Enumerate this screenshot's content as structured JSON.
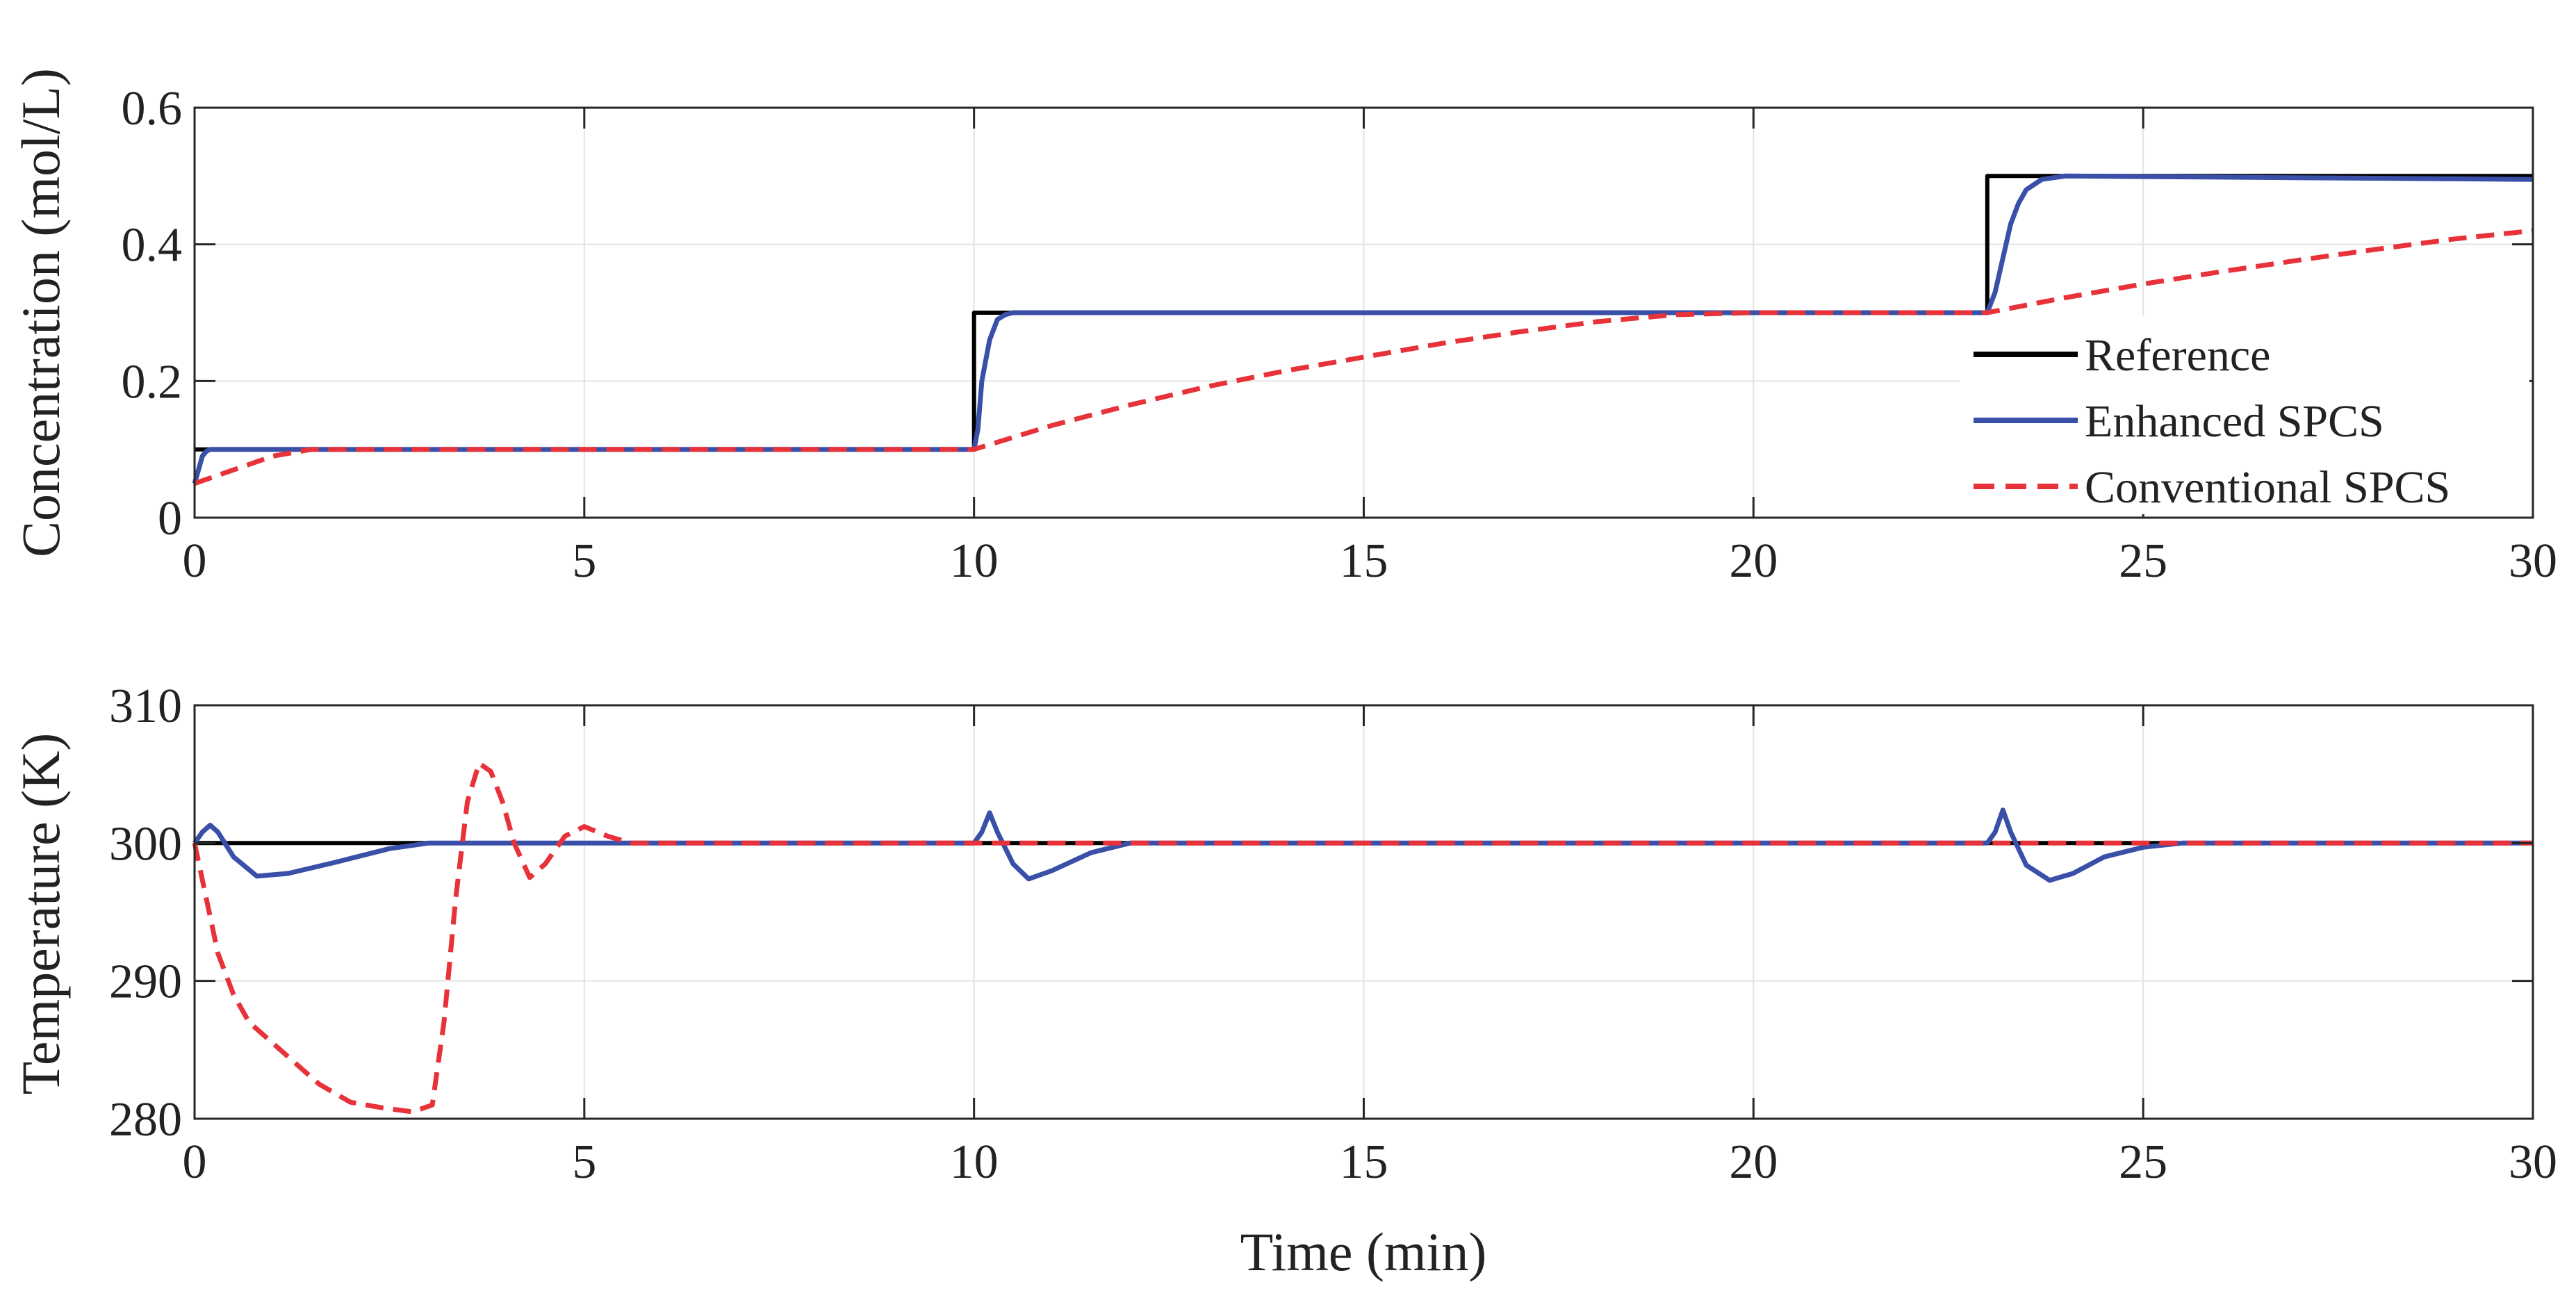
{
  "colors": {
    "reference": "#000000",
    "enhanced": "#3a4fa8",
    "conventional": "#e8323a",
    "grid": "#e3e3e3",
    "axes": "#262626"
  },
  "chart_data": [
    {
      "type": "line",
      "ylabel": "Concentration (mol/L)",
      "xlabel": "",
      "xlim": [
        0,
        30
      ],
      "ylim": [
        0,
        0.6
      ],
      "xticks": [
        "0",
        "5",
        "10",
        "15",
        "20",
        "25",
        "30"
      ],
      "yticks": [
        "0",
        "0.2",
        "0.4",
        "0.6"
      ],
      "grid": true,
      "legend_position": "bottom-right",
      "legend": [
        "Reference",
        "Enhanced SPCS",
        "Conventional SPCS"
      ],
      "series": [
        {
          "name": "Reference",
          "style": "solid",
          "x": [
            0,
            10,
            10,
            23,
            23,
            30
          ],
          "y": [
            0.1,
            0.1,
            0.3,
            0.3,
            0.5,
            0.5
          ]
        },
        {
          "name": "Enhanced SPCS",
          "style": "solid",
          "x": [
            0,
            0.05,
            0.1,
            0.15,
            0.2,
            0.3,
            0.5,
            10,
            10.05,
            10.1,
            10.2,
            10.3,
            10.4,
            10.5,
            23,
            23.1,
            23.2,
            23.3,
            23.4,
            23.5,
            23.7,
            24,
            30
          ],
          "y": [
            0.05,
            0.07,
            0.09,
            0.097,
            0.1,
            0.1,
            0.1,
            0.1,
            0.13,
            0.2,
            0.26,
            0.29,
            0.297,
            0.3,
            0.3,
            0.33,
            0.38,
            0.43,
            0.46,
            0.48,
            0.495,
            0.5,
            0.495
          ]
        },
        {
          "name": "Conventional SPCS",
          "style": "dashed",
          "x": [
            0,
            0.5,
            1,
            1.5,
            2,
            10,
            11,
            12,
            13,
            14,
            15,
            16,
            17,
            18,
            19,
            20,
            23,
            24,
            25,
            26,
            27,
            28,
            29,
            30
          ],
          "y": [
            0.05,
            0.07,
            0.09,
            0.1,
            0.1,
            0.1,
            0.135,
            0.165,
            0.192,
            0.215,
            0.235,
            0.255,
            0.272,
            0.287,
            0.297,
            0.3,
            0.3,
            0.322,
            0.342,
            0.36,
            0.377,
            0.393,
            0.408,
            0.42
          ]
        }
      ]
    },
    {
      "type": "line",
      "ylabel": "Temperature (K)",
      "xlabel": "Time (min)",
      "xlim": [
        0,
        30
      ],
      "ylim": [
        280,
        310
      ],
      "xticks": [
        "0",
        "5",
        "10",
        "15",
        "20",
        "25",
        "30"
      ],
      "yticks": [
        "280",
        "290",
        "300",
        "310"
      ],
      "grid": true,
      "series": [
        {
          "name": "Reference",
          "style": "solid",
          "x": [
            0,
            30
          ],
          "y": [
            300,
            300
          ]
        },
        {
          "name": "Enhanced SPCS",
          "style": "solid",
          "x": [
            0,
            0.1,
            0.2,
            0.3,
            0.5,
            0.8,
            1.2,
            1.8,
            2.5,
            3,
            10,
            10.1,
            10.2,
            10.3,
            10.5,
            10.7,
            11,
            11.5,
            12,
            23,
            23.1,
            23.2,
            23.3,
            23.5,
            23.8,
            24.1,
            24.5,
            25,
            25.5,
            30
          ],
          "y": [
            300,
            300.8,
            301.3,
            300.8,
            299,
            297.6,
            297.8,
            298.6,
            299.6,
            300,
            300,
            300.8,
            302.2,
            300.8,
            298.5,
            297.4,
            298,
            299.3,
            300,
            300,
            300.8,
            302.4,
            300.8,
            298.4,
            297.3,
            297.8,
            299,
            299.7,
            300,
            300
          ]
        },
        {
          "name": "Conventional SPCS",
          "style": "dashed",
          "x": [
            0,
            0.15,
            0.3,
            0.5,
            0.7,
            1,
            1.3,
            1.6,
            2,
            2.4,
            2.8,
            3.05,
            3.2,
            3.35,
            3.5,
            3.65,
            3.8,
            3.95,
            4.1,
            4.3,
            4.5,
            4.75,
            5,
            5.3,
            5.6,
            6,
            30
          ],
          "y": [
            300,
            296,
            292,
            289,
            287,
            285.5,
            284,
            282.5,
            281.2,
            280.8,
            280.5,
            281,
            287,
            296,
            303,
            305.8,
            305.2,
            303,
            300,
            297.5,
            298.5,
            300.5,
            301.2,
            300.5,
            300,
            300,
            300
          ]
        }
      ]
    }
  ]
}
